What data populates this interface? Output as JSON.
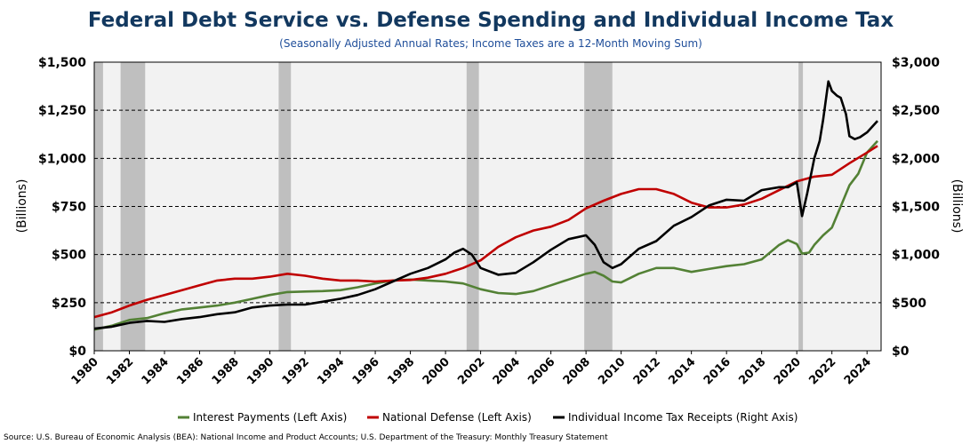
{
  "chart_data": {
    "type": "line",
    "title": "Federal Debt Service vs. Defense Spending and Individual Income Tax",
    "subtitle": "(Seasonally Adjusted Annual Rates; Income Taxes are a 12-Month Moving Sum)",
    "ylabel_left": "(Billions)",
    "ylabel_right": "(Billions)",
    "ylim_left": [
      0,
      1500
    ],
    "ylim_right": [
      0,
      3000
    ],
    "xlim": [
      1980,
      2024.8
    ],
    "yticks_left": [
      "$0",
      "$250",
      "$500",
      "$750",
      "$1,000",
      "$1,250",
      "$1,500"
    ],
    "yticks_right": [
      "$0",
      "$500",
      "$1,000",
      "$1,500",
      "$2,000",
      "$2,500",
      "$3,000"
    ],
    "xticks": [
      "1980",
      "1982",
      "1984",
      "1986",
      "1988",
      "1990",
      "1992",
      "1994",
      "1996",
      "1998",
      "2000",
      "2002",
      "2004",
      "2006",
      "2008",
      "2010",
      "2012",
      "2014",
      "2016",
      "2018",
      "2020",
      "2022",
      "2024"
    ],
    "grid": "horizontal dashed",
    "legend_position": "bottom",
    "recessions": [
      [
        1980.0,
        1980.5
      ],
      [
        1981.5,
        1982.9
      ],
      [
        1990.5,
        1991.2
      ],
      [
        2001.2,
        2001.9
      ],
      [
        2007.9,
        2009.5
      ],
      [
        2020.1,
        2020.35
      ]
    ],
    "series": [
      {
        "name": "Interest Payments (Left Axis)",
        "axis": "left",
        "color": "#538135",
        "x": [
          1980,
          1981,
          1982,
          1983,
          1984,
          1985,
          1986,
          1987,
          1988,
          1989,
          1990,
          1991,
          1992,
          1993,
          1994,
          1995,
          1996,
          1997,
          1998,
          1999,
          2000,
          2001,
          2002,
          2003,
          2004,
          2005,
          2006,
          2007,
          2008,
          2008.5,
          2009,
          2009.5,
          2010,
          2011,
          2012,
          2013,
          2014,
          2015,
          2016,
          2017,
          2018,
          2019,
          2019.5,
          2020,
          2020.3,
          2020.7,
          2021,
          2021.5,
          2022,
          2022.5,
          2023,
          2023.5,
          2024,
          2024.6
        ],
        "y": [
          110,
          130,
          160,
          170,
          195,
          215,
          225,
          235,
          250,
          270,
          290,
          305,
          308,
          310,
          315,
          330,
          350,
          365,
          370,
          365,
          360,
          350,
          320,
          300,
          295,
          310,
          340,
          370,
          400,
          410,
          390,
          360,
          355,
          400,
          430,
          430,
          410,
          425,
          440,
          450,
          475,
          550,
          575,
          555,
          505,
          510,
          550,
          600,
          640,
          750,
          860,
          920,
          1030,
          1090
        ]
      },
      {
        "name": "National Defense (Left Axis)",
        "axis": "left",
        "color": "#c00000",
        "x": [
          1980,
          1981,
          1982,
          1983,
          1984,
          1985,
          1986,
          1987,
          1988,
          1989,
          1990,
          1991,
          1992,
          1993,
          1994,
          1995,
          1996,
          1997,
          1998,
          1999,
          2000,
          2001,
          2002,
          2003,
          2004,
          2005,
          2006,
          2007,
          2008,
          2009,
          2010,
          2011,
          2012,
          2013,
          2014,
          2015,
          2016,
          2017,
          2018,
          2019,
          2020,
          2021,
          2022,
          2023,
          2024,
          2024.6
        ],
        "y": [
          175,
          200,
          235,
          265,
          290,
          315,
          340,
          365,
          375,
          375,
          385,
          400,
          390,
          375,
          365,
          365,
          360,
          365,
          368,
          380,
          400,
          430,
          470,
          540,
          590,
          625,
          645,
          680,
          740,
          780,
          815,
          840,
          840,
          815,
          770,
          745,
          745,
          760,
          790,
          835,
          880,
          905,
          915,
          975,
          1030,
          1065
        ]
      },
      {
        "name": "Individual Income Tax Receipts (Right Axis)",
        "axis": "right",
        "color": "#000000",
        "x": [
          1980,
          1981,
          1982,
          1983,
          1984,
          1985,
          1986,
          1987,
          1988,
          1989,
          1990,
          1991,
          1992,
          1993,
          1994,
          1995,
          1996,
          1997,
          1998,
          1999,
          2000,
          2000.5,
          2001,
          2001.5,
          2002,
          2003,
          2004,
          2005,
          2006,
          2007,
          2008,
          2008.5,
          2009,
          2009.5,
          2010,
          2011,
          2012,
          2013,
          2014,
          2015,
          2016,
          2017,
          2018,
          2019,
          2019.5,
          2020,
          2020.3,
          2020.6,
          2021,
          2021.3,
          2021.5,
          2021.8,
          2022,
          2022.3,
          2022.5,
          2022.8,
          2023,
          2023.3,
          2023.6,
          2024,
          2024.3,
          2024.6
        ],
        "y": [
          230,
          250,
          290,
          310,
          300,
          330,
          350,
          380,
          400,
          450,
          470,
          480,
          480,
          510,
          540,
          580,
          640,
          720,
          800,
          860,
          950,
          1020,
          1060,
          1000,
          860,
          790,
          810,
          920,
          1050,
          1160,
          1200,
          1100,
          920,
          860,
          900,
          1060,
          1140,
          1300,
          1390,
          1510,
          1570,
          1560,
          1670,
          1700,
          1700,
          1750,
          1400,
          1640,
          2000,
          2180,
          2400,
          2800,
          2700,
          2650,
          2630,
          2460,
          2230,
          2200,
          2220,
          2270,
          2330,
          2390
        ]
      }
    ]
  },
  "source": "Source: U.S. Bureau of Economic Analysis (BEA): National Income and Product Accounts; U.S. Department of the Treasury: Monthly Treasury Statement"
}
